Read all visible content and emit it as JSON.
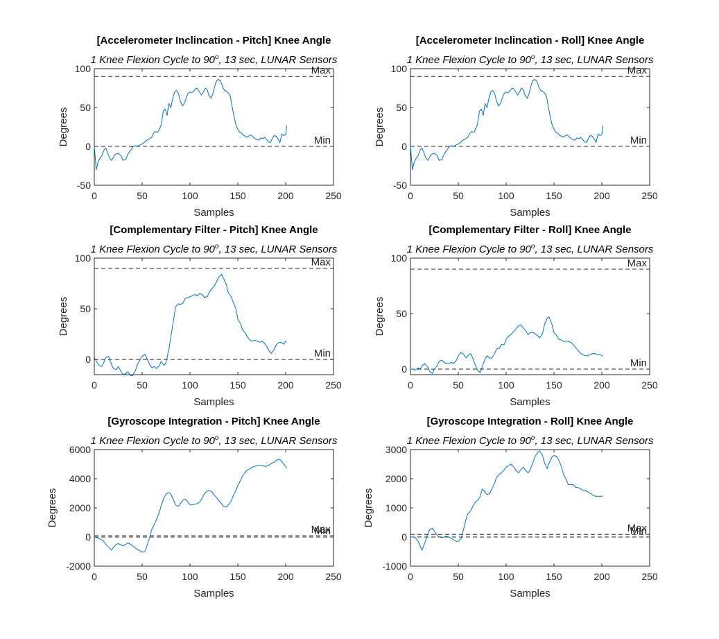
{
  "figure": {
    "background": "#ffffff",
    "line_color": "#0072bd",
    "ref_line_color": "#262626"
  },
  "chart_data": [
    {
      "type": "line",
      "title": "[Accelerometer Inclincation - Pitch] Knee Angle",
      "subtitle_base": "1 Knee Flexion Cycle to 90",
      "subtitle_sup": "o",
      "subtitle_tail": ", 13 sec, LUNAR Sensors",
      "xlabel": "Samples",
      "ylabel": "Degrees",
      "xlim": [
        0,
        250
      ],
      "ylim": [
        -50,
        100
      ],
      "xticks": [
        0,
        50,
        100,
        150,
        200,
        250
      ],
      "yticks": [
        -50,
        0,
        50,
        100
      ],
      "reference_lines": [
        {
          "label": "Max",
          "y": 90
        },
        {
          "label": "Min",
          "y": 0
        }
      ],
      "x": [
        0,
        2,
        4,
        6,
        8,
        10,
        12,
        14,
        16,
        18,
        20,
        22,
        25,
        28,
        30,
        33,
        35,
        38,
        40,
        43,
        45,
        48,
        50,
        53,
        55,
        58,
        60,
        62,
        64,
        66,
        68,
        70,
        72,
        74,
        76,
        78,
        80,
        82,
        84,
        86,
        88,
        90,
        92,
        94,
        96,
        98,
        100,
        102,
        104,
        106,
        108,
        110,
        112,
        114,
        116,
        118,
        120,
        122,
        124,
        126,
        128,
        130,
        132,
        134,
        136,
        138,
        140,
        142,
        144,
        146,
        148,
        150,
        152,
        154,
        156,
        158,
        160,
        162,
        164,
        166,
        168,
        170,
        172,
        174,
        176,
        178,
        180,
        182,
        184,
        186,
        188,
        190,
        192,
        194,
        196,
        198,
        200,
        201
      ],
      "y": [
        0,
        -30,
        -20,
        -15,
        -12,
        -5,
        -2,
        -8,
        -15,
        -18,
        -14,
        -10,
        -9,
        -12,
        -18,
        -17,
        -10,
        -5,
        -1,
        1,
        0,
        2,
        3,
        6,
        8,
        10,
        12,
        17,
        19,
        18,
        22,
        28,
        45,
        48,
        40,
        55,
        50,
        62,
        70,
        72,
        68,
        58,
        52,
        55,
        62,
        68,
        70,
        69,
        71,
        75,
        74,
        70,
        66,
        70,
        75,
        73,
        65,
        62,
        68,
        78,
        85,
        86,
        84,
        77,
        72,
        71,
        69,
        65,
        52,
        38,
        28,
        22,
        18,
        17,
        14,
        13,
        12,
        14,
        15,
        12,
        10,
        9,
        8,
        11,
        10,
        12,
        9,
        6,
        5,
        10,
        14,
        13,
        10,
        5,
        16,
        14,
        15,
        27
      ]
    },
    {
      "type": "line",
      "title": "[Accelerometer Inclincation - Roll] Knee Angle",
      "subtitle_base": "1 Knee Flexion Cycle to 90",
      "subtitle_sup": "o",
      "subtitle_tail": ", 13 sec, LUNAR Sensors",
      "xlabel": "Samples",
      "ylabel": "Degrees",
      "xlim": [
        0,
        250
      ],
      "ylim": [
        -50,
        100
      ],
      "xticks": [
        0,
        50,
        100,
        150,
        200,
        250
      ],
      "yticks": [
        -50,
        0,
        50,
        100
      ],
      "reference_lines": [
        {
          "label": "Max",
          "y": 90
        },
        {
          "label": "Min",
          "y": 0
        }
      ],
      "x": [
        0,
        2,
        4,
        6,
        8,
        10,
        12,
        14,
        16,
        18,
        20,
        22,
        25,
        28,
        30,
        33,
        35,
        38,
        40,
        43,
        45,
        48,
        50,
        53,
        55,
        58,
        60,
        62,
        64,
        66,
        68,
        70,
        72,
        74,
        76,
        78,
        80,
        82,
        84,
        86,
        88,
        90,
        92,
        94,
        96,
        98,
        100,
        102,
        104,
        106,
        108,
        110,
        112,
        114,
        116,
        118,
        120,
        122,
        124,
        126,
        128,
        130,
        132,
        134,
        136,
        138,
        140,
        142,
        144,
        146,
        148,
        150,
        152,
        154,
        156,
        158,
        160,
        162,
        164,
        166,
        168,
        170,
        172,
        174,
        176,
        178,
        180,
        182,
        184,
        186,
        188,
        190,
        192,
        194,
        196,
        198,
        200,
        201
      ],
      "y": [
        0,
        -30,
        -20,
        -15,
        -12,
        -5,
        -2,
        -8,
        -15,
        -18,
        -14,
        -10,
        -9,
        -12,
        -18,
        -17,
        -10,
        -5,
        -1,
        1,
        0,
        2,
        3,
        6,
        8,
        10,
        12,
        17,
        19,
        18,
        22,
        28,
        45,
        48,
        40,
        55,
        50,
        62,
        70,
        72,
        68,
        58,
        52,
        55,
        62,
        68,
        70,
        69,
        71,
        75,
        74,
        70,
        66,
        70,
        75,
        73,
        65,
        62,
        68,
        78,
        85,
        86,
        84,
        77,
        72,
        71,
        69,
        65,
        52,
        38,
        28,
        22,
        18,
        17,
        14,
        13,
        12,
        14,
        15,
        12,
        10,
        9,
        8,
        11,
        10,
        12,
        9,
        6,
        5,
        10,
        14,
        13,
        10,
        5,
        16,
        14,
        15,
        27
      ]
    },
    {
      "type": "line",
      "title": "[Complementary Filter - Pitch] Knee Angle",
      "subtitle_base": "1 Knee Flexion Cycle to 90",
      "subtitle_sup": "o",
      "subtitle_tail": ", 13 sec, LUNAR Sensors",
      "xlabel": "Samples",
      "ylabel": "Degrees",
      "xlim": [
        0,
        250
      ],
      "ylim": [
        -15,
        100
      ],
      "xticks": [
        0,
        50,
        100,
        150,
        200,
        250
      ],
      "yticks": [
        0,
        50,
        100
      ],
      "reference_lines": [
        {
          "label": "Max",
          "y": 90
        },
        {
          "label": "Min",
          "y": 0
        }
      ],
      "x": [
        0,
        3,
        5,
        8,
        10,
        12,
        15,
        18,
        20,
        23,
        25,
        28,
        30,
        33,
        35,
        38,
        40,
        43,
        45,
        48,
        50,
        53,
        55,
        58,
        60,
        63,
        65,
        68,
        70,
        73,
        75,
        78,
        80,
        83,
        85,
        88,
        90,
        93,
        95,
        98,
        100,
        103,
        105,
        108,
        110,
        113,
        115,
        118,
        120,
        123,
        125,
        128,
        130,
        133,
        135,
        138,
        140,
        143,
        145,
        148,
        150,
        153,
        155,
        158,
        160,
        163,
        165,
        168,
        170,
        173,
        175,
        178,
        180,
        183,
        185,
        188,
        190,
        193,
        195,
        198,
        200,
        201
      ],
      "y": [
        2,
        -3,
        -6,
        -7,
        -3,
        2,
        3,
        -5,
        -9,
        -10,
        -7,
        -12,
        -15,
        -14,
        -12,
        -16,
        -16,
        -11,
        -5,
        0,
        3,
        5,
        1,
        -5,
        -8,
        -7,
        -9,
        -6,
        -2,
        -6,
        -3,
        10,
        22,
        40,
        52,
        55,
        54,
        56,
        60,
        61,
        62,
        63,
        64,
        63,
        65,
        64,
        61,
        62,
        66,
        70,
        72,
        77,
        81,
        84,
        80,
        74,
        66,
        62,
        57,
        50,
        40,
        35,
        29,
        26,
        22,
        19,
        18,
        19,
        18,
        17,
        18,
        16,
        13,
        8,
        6,
        10,
        14,
        17,
        17,
        15,
        18,
        18
      ]
    },
    {
      "type": "line",
      "title": "[Complementary Filter - Roll] Knee Angle",
      "subtitle_base": "1 Knee Flexion Cycle to 90",
      "subtitle_sup": "o",
      "subtitle_tail": ", 13 sec, LUNAR Sensors",
      "xlabel": "Samples",
      "ylabel": "Degrees",
      "xlim": [
        0,
        250
      ],
      "ylim": [
        -5,
        100
      ],
      "xticks": [
        0,
        50,
        100,
        150,
        200,
        250
      ],
      "yticks": [
        0,
        50,
        100
      ],
      "reference_lines": [
        {
          "label": "Max",
          "y": 90
        },
        {
          "label": "Min",
          "y": 0
        }
      ],
      "x": [
        0,
        3,
        5,
        8,
        10,
        12,
        15,
        18,
        20,
        23,
        25,
        28,
        30,
        33,
        35,
        38,
        40,
        43,
        45,
        48,
        50,
        53,
        55,
        58,
        60,
        63,
        65,
        68,
        70,
        73,
        75,
        78,
        80,
        83,
        85,
        88,
        90,
        93,
        95,
        98,
        100,
        103,
        105,
        108,
        110,
        113,
        115,
        118,
        120,
        123,
        125,
        128,
        130,
        133,
        135,
        138,
        140,
        143,
        145,
        148,
        150,
        153,
        155,
        158,
        160,
        163,
        165,
        168,
        170,
        173,
        175,
        178,
        180,
        183,
        185,
        188,
        190,
        193,
        195,
        198,
        200,
        201
      ],
      "y": [
        0,
        0,
        -1,
        1,
        0,
        3,
        5,
        2,
        -2,
        -4,
        0,
        3,
        7,
        8,
        6,
        5,
        5,
        6,
        5,
        8,
        12,
        15,
        14,
        10,
        12,
        14,
        10,
        3,
        -1,
        -3,
        2,
        9,
        12,
        10,
        10,
        14,
        18,
        19,
        22,
        22,
        27,
        30,
        31,
        34,
        36,
        39,
        40,
        37,
        35,
        31,
        33,
        33,
        32,
        30,
        28,
        32,
        40,
        46,
        47,
        40,
        33,
        30,
        27,
        26,
        25,
        25,
        25,
        24,
        22,
        19,
        17,
        14,
        13,
        12,
        12,
        13,
        14,
        14,
        13,
        13,
        12,
        12
      ]
    },
    {
      "type": "line",
      "title": "[Gyroscope Integration - Pitch] Knee Angle",
      "subtitle_base": "1 Knee Flexion Cycle to 90",
      "subtitle_sup": "o",
      "subtitle_tail": ", 13 sec, LUNAR Sensors",
      "xlabel": "Samples",
      "ylabel": "Degrees",
      "xlim": [
        0,
        250
      ],
      "ylim": [
        -2000,
        6000
      ],
      "xticks": [
        0,
        50,
        100,
        150,
        200,
        250
      ],
      "yticks": [
        -2000,
        0,
        2000,
        4000,
        6000
      ],
      "reference_lines": [
        {
          "label": "Max",
          "y": 90
        },
        {
          "label": "Min",
          "y": 0
        }
      ],
      "x": [
        0,
        3,
        5,
        8,
        10,
        12,
        15,
        18,
        20,
        23,
        25,
        28,
        30,
        33,
        35,
        38,
        40,
        43,
        45,
        48,
        50,
        53,
        55,
        58,
        60,
        63,
        65,
        68,
        70,
        73,
        75,
        78,
        80,
        83,
        85,
        88,
        90,
        93,
        95,
        98,
        100,
        103,
        105,
        108,
        110,
        113,
        115,
        118,
        120,
        123,
        125,
        128,
        130,
        133,
        135,
        138,
        140,
        143,
        145,
        148,
        150,
        153,
        155,
        158,
        160,
        163,
        165,
        168,
        170,
        173,
        175,
        178,
        180,
        183,
        185,
        188,
        190,
        193,
        195,
        198,
        200,
        201
      ],
      "y": [
        0,
        -50,
        -100,
        -200,
        -300,
        -500,
        -700,
        -900,
        -700,
        -500,
        -450,
        -550,
        -600,
        -500,
        -400,
        -500,
        -600,
        -750,
        -850,
        -950,
        -1050,
        -1000,
        -600,
        0,
        500,
        900,
        1200,
        1700,
        2200,
        2700,
        2950,
        3050,
        2950,
        2500,
        2200,
        2100,
        2300,
        2550,
        2600,
        2400,
        2200,
        2200,
        2250,
        2300,
        2400,
        2700,
        2950,
        3150,
        3200,
        3100,
        2900,
        2700,
        2500,
        2300,
        2100,
        2050,
        2200,
        2450,
        2800,
        3200,
        3550,
        3900,
        4200,
        4450,
        4600,
        4700,
        4800,
        4850,
        4900,
        4900,
        4900,
        4850,
        4850,
        4950,
        5050,
        5150,
        5250,
        5350,
        5250,
        5000,
        4850,
        4700
      ]
    },
    {
      "type": "line",
      "title": "[Gyroscope Integration - Roll] Knee Angle",
      "subtitle_base": "1 Knee Flexion Cycle to 90",
      "subtitle_sup": "o",
      "subtitle_tail": ", 13 sec, LUNAR Sensors",
      "xlabel": "Samples",
      "ylabel": "Degrees",
      "xlim": [
        0,
        250
      ],
      "ylim": [
        -1000,
        3000
      ],
      "xticks": [
        0,
        50,
        100,
        150,
        200,
        250
      ],
      "yticks": [
        -1000,
        0,
        1000,
        2000,
        3000
      ],
      "reference_lines": [
        {
          "label": "Max",
          "y": 90
        },
        {
          "label": "Min",
          "y": 0
        }
      ],
      "x": [
        0,
        3,
        5,
        8,
        10,
        12,
        15,
        18,
        20,
        23,
        25,
        28,
        30,
        33,
        35,
        38,
        40,
        43,
        45,
        48,
        50,
        53,
        55,
        58,
        60,
        63,
        65,
        68,
        70,
        73,
        75,
        78,
        80,
        83,
        85,
        88,
        90,
        93,
        95,
        98,
        100,
        103,
        105,
        108,
        110,
        113,
        115,
        118,
        120,
        123,
        125,
        128,
        130,
        133,
        135,
        138,
        140,
        143,
        145,
        148,
        150,
        153,
        155,
        158,
        160,
        163,
        165,
        168,
        170,
        173,
        175,
        178,
        180,
        183,
        185,
        188,
        190,
        193,
        195,
        198,
        200,
        201
      ],
      "y": [
        0,
        0,
        -20,
        -150,
        -300,
        -450,
        -200,
        100,
        250,
        300,
        200,
        50,
        0,
        -20,
        0,
        20,
        0,
        -50,
        -100,
        -150,
        -150,
        -50,
        200,
        600,
        800,
        900,
        1050,
        1200,
        1250,
        1400,
        1650,
        1550,
        1450,
        1500,
        1650,
        1850,
        2050,
        2150,
        2200,
        2300,
        2400,
        2450,
        2500,
        2400,
        2300,
        2200,
        2300,
        2400,
        2300,
        2200,
        2300,
        2550,
        2750,
        2900,
        2950,
        2800,
        2550,
        2350,
        2550,
        2750,
        2800,
        2750,
        2650,
        2400,
        2150,
        1950,
        1800,
        1800,
        1800,
        1700,
        1700,
        1650,
        1600,
        1600,
        1550,
        1500,
        1450,
        1400,
        1400,
        1400,
        1400,
        1400
      ]
    }
  ]
}
